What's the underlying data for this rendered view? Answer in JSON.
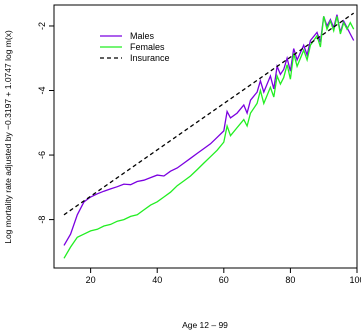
{
  "chart_data": {
    "type": "line",
    "xlabel": "Age 12 – 99",
    "ylabel": "Log mortality rate adjusted by −0.3197 + 1.0747 log m(x)",
    "xlim": [
      9,
      100
    ],
    "ylim": [
      -9.5,
      -1.35
    ],
    "x_ticks": [
      20,
      40,
      60,
      80,
      100
    ],
    "x_tick_labels": [
      "20",
      "40",
      "60",
      "80",
      "100"
    ],
    "y_ticks": [
      -8,
      -6,
      -4,
      -2
    ],
    "y_tick_labels": [
      "-8",
      "-6",
      "-4",
      "-2"
    ],
    "grid": false,
    "legend": {
      "position": "top-left",
      "entries": [
        {
          "label": "Males",
          "color": "#7B00E0",
          "dash": "solid"
        },
        {
          "label": "Females",
          "color": "#22EE22",
          "dash": "solid"
        },
        {
          "label": "Insurance",
          "color": "#000000",
          "dash": "dashed"
        }
      ]
    },
    "series": [
      {
        "name": "Males",
        "color": "#7B00E0",
        "points": [
          [
            12,
            -8.8
          ],
          [
            14,
            -8.45
          ],
          [
            16,
            -7.85
          ],
          [
            18,
            -7.45
          ],
          [
            20,
            -7.3
          ],
          [
            22,
            -7.2
          ],
          [
            24,
            -7.12
          ],
          [
            26,
            -7.05
          ],
          [
            28,
            -6.98
          ],
          [
            30,
            -6.9
          ],
          [
            32,
            -6.92
          ],
          [
            34,
            -6.82
          ],
          [
            36,
            -6.78
          ],
          [
            38,
            -6.7
          ],
          [
            40,
            -6.62
          ],
          [
            42,
            -6.65
          ],
          [
            44,
            -6.5
          ],
          [
            46,
            -6.4
          ],
          [
            48,
            -6.25
          ],
          [
            50,
            -6.1
          ],
          [
            52,
            -5.95
          ],
          [
            54,
            -5.8
          ],
          [
            56,
            -5.65
          ],
          [
            58,
            -5.45
          ],
          [
            60,
            -5.25
          ],
          [
            61,
            -4.65
          ],
          [
            62,
            -4.85
          ],
          [
            64,
            -4.7
          ],
          [
            66,
            -4.45
          ],
          [
            67,
            -4.7
          ],
          [
            68,
            -4.3
          ],
          [
            70,
            -4.05
          ],
          [
            71,
            -3.7
          ],
          [
            72,
            -4.05
          ],
          [
            74,
            -3.55
          ],
          [
            75,
            -3.95
          ],
          [
            76,
            -3.25
          ],
          [
            77,
            -3.5
          ],
          [
            78,
            -3.35
          ],
          [
            79,
            -3.0
          ],
          [
            80,
            -3.4
          ],
          [
            81,
            -2.7
          ],
          [
            82,
            -3.05
          ],
          [
            84,
            -2.6
          ],
          [
            85,
            -2.9
          ],
          [
            86,
            -2.45
          ],
          [
            88,
            -2.2
          ],
          [
            89,
            -2.5
          ],
          [
            90,
            -1.7
          ],
          [
            91,
            -2.0
          ],
          [
            92,
            -1.8
          ],
          [
            93,
            -2.05
          ],
          [
            94,
            -1.65
          ],
          [
            95,
            -2.2
          ],
          [
            96,
            -1.85
          ],
          [
            97,
            -2.05
          ],
          [
            98,
            -2.25
          ],
          [
            99,
            -2.45
          ]
        ]
      },
      {
        "name": "Females",
        "color": "#22EE22",
        "points": [
          [
            12,
            -9.2
          ],
          [
            14,
            -8.85
          ],
          [
            16,
            -8.55
          ],
          [
            18,
            -8.45
          ],
          [
            20,
            -8.35
          ],
          [
            22,
            -8.3
          ],
          [
            24,
            -8.2
          ],
          [
            26,
            -8.15
          ],
          [
            28,
            -8.05
          ],
          [
            30,
            -8.0
          ],
          [
            32,
            -7.9
          ],
          [
            34,
            -7.85
          ],
          [
            36,
            -7.7
          ],
          [
            38,
            -7.55
          ],
          [
            40,
            -7.45
          ],
          [
            42,
            -7.3
          ],
          [
            44,
            -7.15
          ],
          [
            46,
            -6.95
          ],
          [
            48,
            -6.8
          ],
          [
            50,
            -6.65
          ],
          [
            52,
            -6.45
          ],
          [
            54,
            -6.25
          ],
          [
            56,
            -6.05
          ],
          [
            58,
            -5.85
          ],
          [
            60,
            -5.6
          ],
          [
            61,
            -5.1
          ],
          [
            62,
            -5.4
          ],
          [
            64,
            -5.15
          ],
          [
            66,
            -4.9
          ],
          [
            67,
            -5.1
          ],
          [
            68,
            -4.7
          ],
          [
            70,
            -4.4
          ],
          [
            71,
            -4.0
          ],
          [
            72,
            -4.4
          ],
          [
            74,
            -3.9
          ],
          [
            75,
            -4.2
          ],
          [
            76,
            -3.55
          ],
          [
            77,
            -3.8
          ],
          [
            78,
            -3.6
          ],
          [
            79,
            -3.2
          ],
          [
            80,
            -3.65
          ],
          [
            81,
            -2.85
          ],
          [
            82,
            -3.25
          ],
          [
            84,
            -2.75
          ],
          [
            85,
            -3.05
          ],
          [
            86,
            -2.6
          ],
          [
            88,
            -2.3
          ],
          [
            89,
            -2.65
          ],
          [
            90,
            -1.7
          ],
          [
            91,
            -2.1
          ],
          [
            92,
            -1.85
          ],
          [
            93,
            -2.15
          ],
          [
            94,
            -1.7
          ],
          [
            95,
            -2.25
          ],
          [
            96,
            -1.9
          ],
          [
            97,
            -2.1
          ],
          [
            98,
            -1.9
          ],
          [
            99,
            -2.1
          ]
        ]
      },
      {
        "name": "Insurance",
        "color": "#000000",
        "dash": "dashed",
        "points": [
          [
            12,
            -7.85
          ],
          [
            99,
            -1.6
          ]
        ]
      }
    ]
  }
}
